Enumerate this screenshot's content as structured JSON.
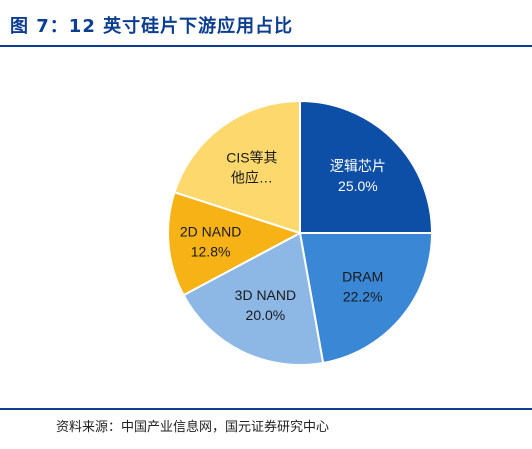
{
  "header": {
    "title": "图 7：12 英寸硅片下游应用占比"
  },
  "footer": {
    "source": "资料来源：中国产业信息网，国元证券研究中心"
  },
  "chart_data": {
    "type": "pie",
    "title": "",
    "slices": [
      {
        "label": "逻辑芯片",
        "value": 25.0,
        "value_label": "25.0%",
        "color": "#0d4ea6",
        "text_color": "#ffffff"
      },
      {
        "label": "DRAM",
        "value": 22.2,
        "value_label": "22.2%",
        "color": "#3a87d5",
        "text_color": "#1a1a1a"
      },
      {
        "label": "3D NAND",
        "value": 20.0,
        "value_label": "20.0%",
        "color": "#8db8e6",
        "text_color": "#1a1a1a"
      },
      {
        "label": "2D NAND",
        "value": 12.8,
        "value_label": "12.8%",
        "color": "#f7b315",
        "text_color": "#1a1a1a"
      },
      {
        "label": "CIS等其他应…",
        "line1": "CIS等其",
        "line2": "他应…",
        "value": 20.0,
        "value_label": "",
        "color": "#fdd96d",
        "text_color": "#1a1a1a"
      }
    ],
    "start_angle_deg": 0,
    "direction": "clockwise"
  }
}
